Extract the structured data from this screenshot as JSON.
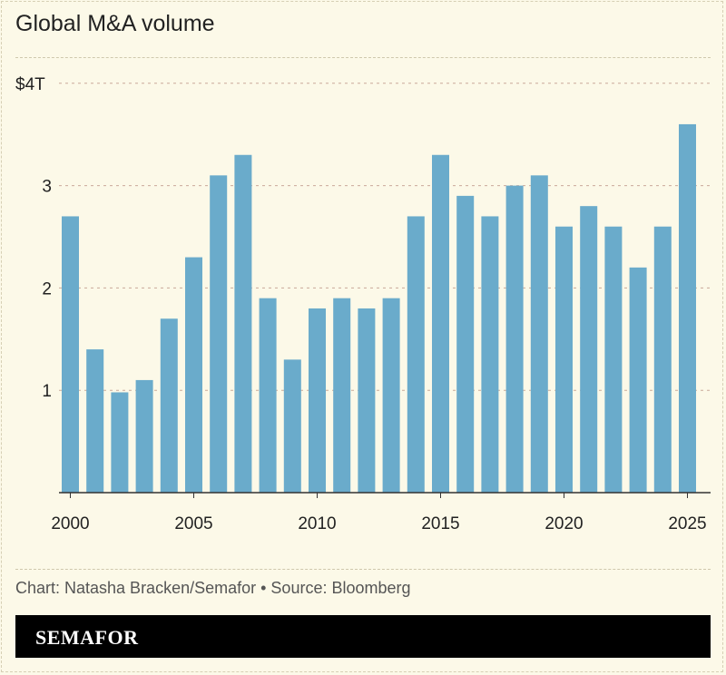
{
  "title": "Global M&A volume",
  "source": "Chart: Natasha Bracken/Semafor • Source: Bloomberg",
  "logo": "SEMAFOR",
  "colors": {
    "bar": "#6aabcb",
    "background": "#fcf9e8",
    "grid": "#c9a99a"
  },
  "chart_data": {
    "type": "bar",
    "title": "Global M&A volume",
    "xlabel": "",
    "ylabel": "",
    "ylim": [
      0,
      4
    ],
    "yticks": [
      1,
      2,
      3,
      4
    ],
    "ytick_labels": [
      "1",
      "2",
      "3",
      "$4T"
    ],
    "xtick_labels": [
      "2000",
      "2005",
      "2010",
      "2015",
      "2020",
      "2025"
    ],
    "grid": true,
    "categories": [
      2000,
      2001,
      2002,
      2003,
      2004,
      2005,
      2006,
      2007,
      2008,
      2009,
      2010,
      2011,
      2012,
      2013,
      2014,
      2015,
      2016,
      2017,
      2018,
      2019,
      2020,
      2021,
      2022,
      2023,
      2024,
      2025
    ],
    "values": [
      2.7,
      1.4,
      0.98,
      1.1,
      1.7,
      2.3,
      3.1,
      3.3,
      1.9,
      1.3,
      1.8,
      1.9,
      1.8,
      1.9,
      2.7,
      3.3,
      2.9,
      2.7,
      3.0,
      3.1,
      2.6,
      2.8,
      2.6,
      2.2,
      2.6,
      3.6
    ]
  }
}
